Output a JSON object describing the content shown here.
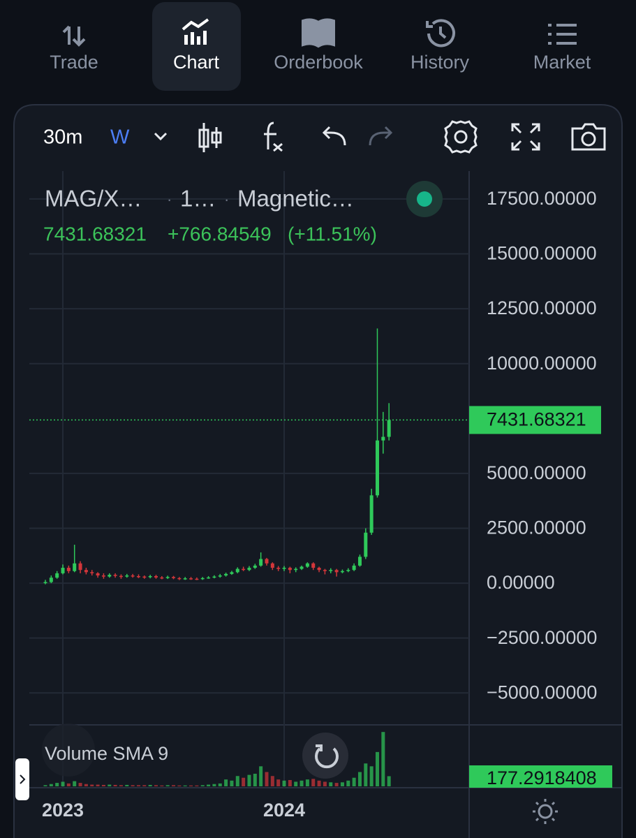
{
  "nav": {
    "tabs": [
      "Trade",
      "Chart",
      "Orderbook",
      "History",
      "Market"
    ],
    "active": 1
  },
  "toolbar": {
    "interval": "30m",
    "period": "W"
  },
  "symbol": {
    "pair": "MAG/X…",
    "resolution": "1…",
    "name": "Magnetic…",
    "separator": "·"
  },
  "quote": {
    "last": "7431.68321",
    "change": "+766.84549",
    "change_pct": "(+11.51%)"
  },
  "volume_title": "Volume SMA 9",
  "chart": {
    "type": "candlestick",
    "up_color": "#2fc95a",
    "down_color": "#d3363a",
    "ylim": [
      -6360,
      18770
    ],
    "yticks": [
      {
        "value": 17500,
        "label": "17500.00000"
      },
      {
        "value": 15000,
        "label": "15000.00000"
      },
      {
        "value": 12500,
        "label": "12500.00000"
      },
      {
        "value": 10000,
        "label": "10000.00000"
      },
      {
        "value": 5000,
        "label": "5000.00000"
      },
      {
        "value": 2500,
        "label": "2500.00000"
      },
      {
        "value": 0,
        "label": "0.00000"
      },
      {
        "value": -2500,
        "label": "−2500.00000"
      },
      {
        "value": -5000,
        "label": "−5000.00000"
      }
    ],
    "categories": [
      null,
      null,
      null,
      "2023",
      null,
      null,
      null,
      null,
      null,
      null,
      null,
      null,
      null,
      null,
      null,
      null,
      null,
      null,
      null,
      null,
      null,
      null,
      null,
      null,
      null,
      null,
      null,
      null,
      null,
      null,
      null,
      null,
      null,
      null,
      null,
      null,
      null,
      null,
      null,
      null,
      null,
      "2024",
      null,
      null,
      null,
      null,
      null,
      null,
      null,
      null,
      null,
      null,
      null,
      null,
      null,
      null,
      null,
      null,
      null,
      null
    ],
    "open": [
      0,
      50,
      250,
      450,
      700,
      550,
      900,
      600,
      500,
      450,
      350,
      300,
      380,
      330,
      300,
      350,
      320,
      300,
      280,
      320,
      260,
      240,
      280,
      230,
      200,
      220,
      200,
      190,
      230,
      260,
      300,
      350,
      420,
      500,
      650,
      600,
      700,
      800,
      1100,
      900,
      700,
      650,
      700,
      600,
      650,
      750,
      900,
      700,
      600,
      550,
      600,
      500,
      550,
      600,
      800,
      1200,
      2300,
      4000,
      6500,
      6664.84
    ],
    "high": [
      150,
      350,
      550,
      850,
      800,
      1750,
      1000,
      700,
      600,
      500,
      450,
      450,
      450,
      400,
      420,
      420,
      400,
      350,
      380,
      380,
      320,
      340,
      330,
      280,
      280,
      280,
      260,
      280,
      320,
      360,
      420,
      480,
      560,
      720,
      750,
      780,
      880,
      1400,
      1150,
      950,
      780,
      780,
      750,
      720,
      800,
      950,
      950,
      750,
      650,
      680,
      650,
      620,
      680,
      900,
      1300,
      2500,
      4300,
      11600,
      7800,
      8200
    ],
    "low": [
      -50,
      0,
      200,
      400,
      450,
      500,
      450,
      400,
      350,
      250,
      200,
      250,
      250,
      200,
      250,
      250,
      230,
      200,
      220,
      200,
      180,
      190,
      180,
      140,
      150,
      150,
      140,
      150,
      200,
      220,
      250,
      300,
      380,
      450,
      550,
      550,
      650,
      750,
      800,
      600,
      550,
      550,
      450,
      500,
      600,
      700,
      600,
      500,
      400,
      450,
      300,
      450,
      500,
      550,
      750,
      1100,
      2200,
      3900,
      5900,
      6500
    ],
    "close": [
      50,
      250,
      450,
      700,
      550,
      900,
      600,
      500,
      450,
      350,
      300,
      380,
      330,
      300,
      350,
      320,
      300,
      280,
      320,
      260,
      240,
      280,
      230,
      200,
      220,
      200,
      190,
      230,
      260,
      300,
      350,
      420,
      500,
      650,
      600,
      700,
      800,
      1100,
      900,
      700,
      650,
      700,
      600,
      650,
      750,
      900,
      700,
      600,
      550,
      600,
      500,
      550,
      600,
      800,
      1200,
      2300,
      4000,
      6500,
      6664.84,
      7431.68321
    ],
    "vlim": [
      0,
      1050
    ],
    "volume": [
      20,
      40,
      60,
      80,
      50,
      90,
      60,
      40,
      30,
      30,
      25,
      30,
      25,
      20,
      25,
      20,
      20,
      20,
      25,
      20,
      15,
      20,
      20,
      15,
      15,
      15,
      15,
      20,
      30,
      40,
      50,
      120,
      100,
      180,
      150,
      200,
      220,
      350,
      250,
      180,
      120,
      100,
      110,
      80,
      100,
      120,
      130,
      100,
      80,
      70,
      60,
      70,
      100,
      150,
      250,
      400,
      350,
      600,
      950,
      177.2918408
    ]
  }
}
